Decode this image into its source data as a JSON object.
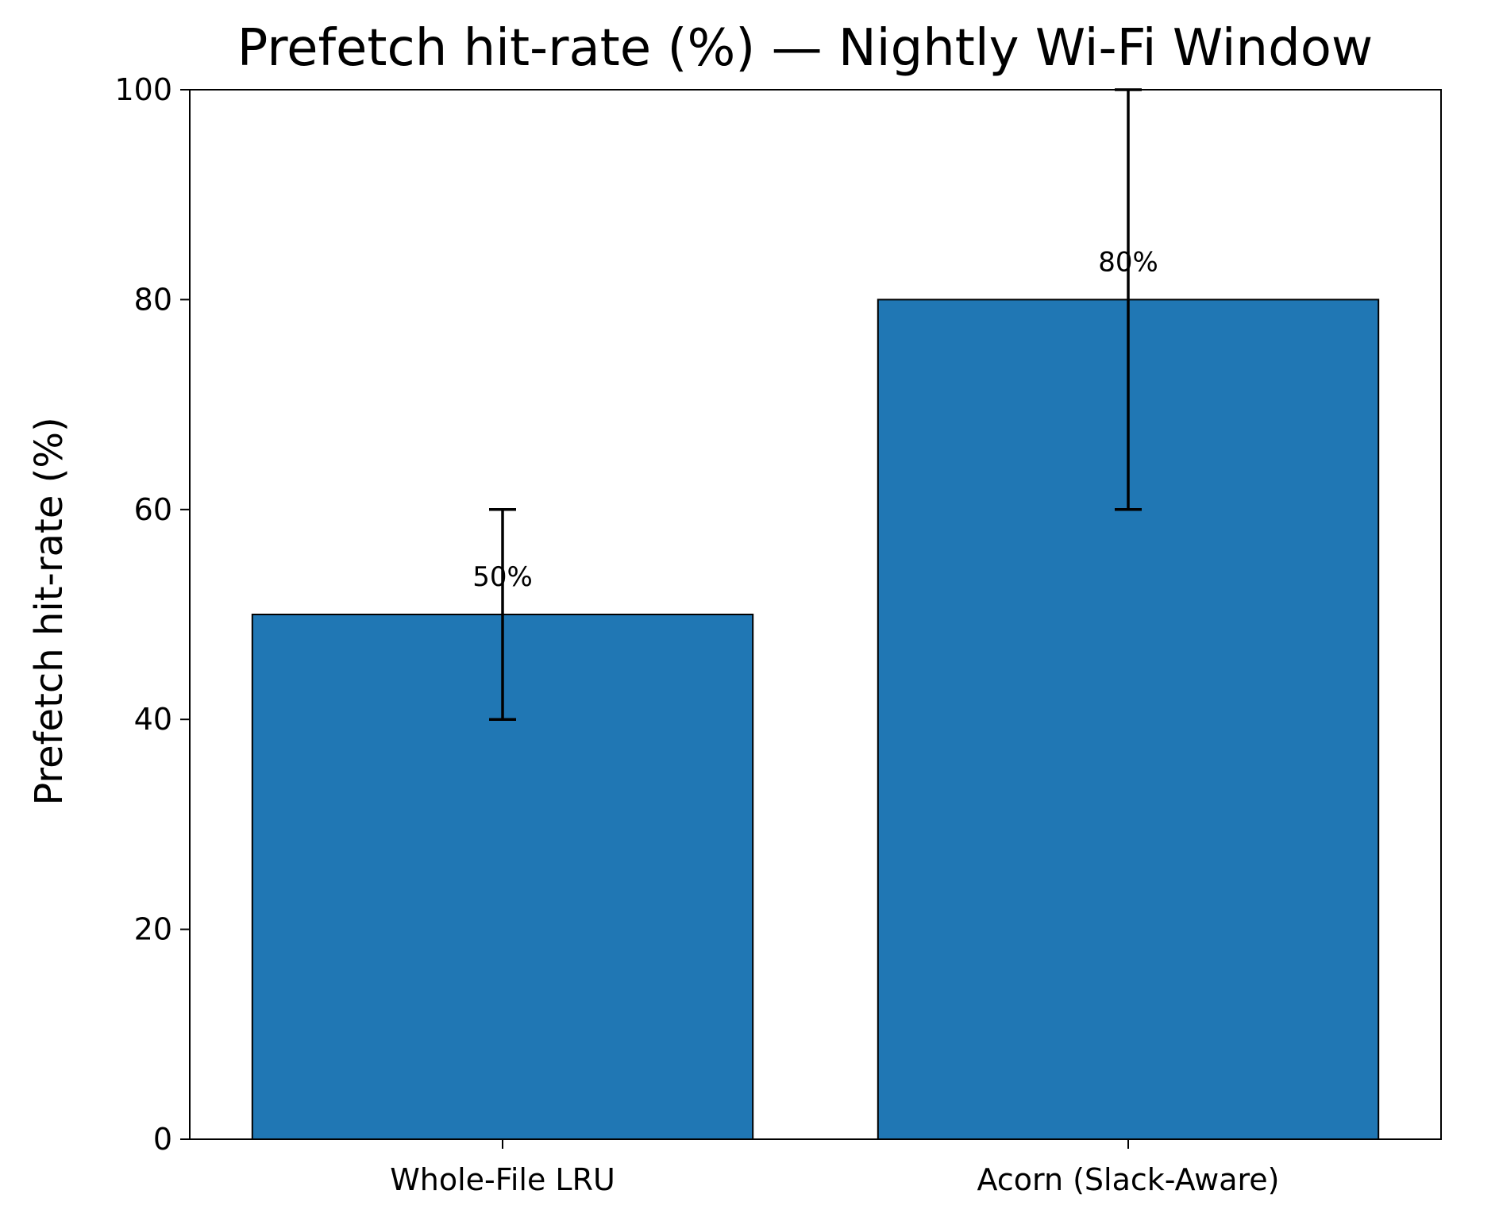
{
  "chart_data": {
    "type": "bar",
    "title": "Prefetch hit-rate (%) — Nightly Wi-Fi Window",
    "xlabel": "",
    "ylabel": "Prefetch hit-rate (%)",
    "categories": [
      "Whole-File LRU",
      "Acorn (Slack-Aware)"
    ],
    "values": [
      50,
      80
    ],
    "error_bars": [
      {
        "lower": 40,
        "upper": 60
      },
      {
        "lower": 60,
        "upper": 100
      }
    ],
    "data_labels": [
      "50%",
      "80%"
    ],
    "ylim": [
      0,
      100
    ],
    "yticks": [
      0,
      20,
      40,
      60,
      80,
      100
    ],
    "grid": false,
    "legend": "none",
    "colors": {
      "bar": "#2077b4",
      "bar_edge": "#000000",
      "error_bar": "#000000",
      "axes": "#000000"
    }
  }
}
